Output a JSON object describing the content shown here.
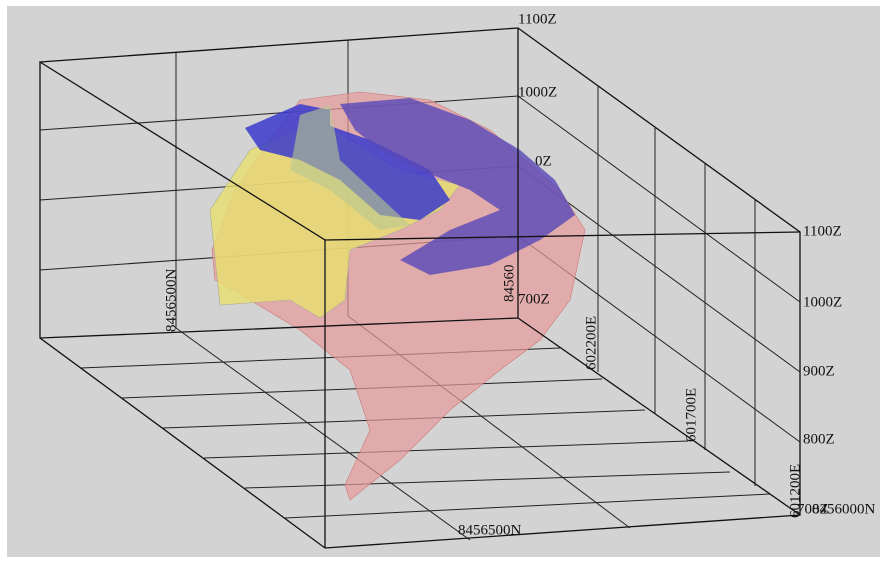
{
  "labels": [
    {
      "text": "1100Z"
    },
    {
      "text": "1000Z"
    },
    {
      "text": "0Z"
    },
    {
      "text": "700Z"
    },
    {
      "text": "84560"
    },
    {
      "text": "8456500N"
    },
    {
      "text": "602200E"
    },
    {
      "text": "601700E"
    },
    {
      "text": "601200E"
    },
    {
      "text": "1100Z"
    },
    {
      "text": "1000Z"
    },
    {
      "text": "900Z"
    },
    {
      "text": "800Z"
    },
    {
      "text": "8456000N"
    },
    {
      "text": "700Z"
    },
    {
      "text": "8456500N"
    }
  ]
}
